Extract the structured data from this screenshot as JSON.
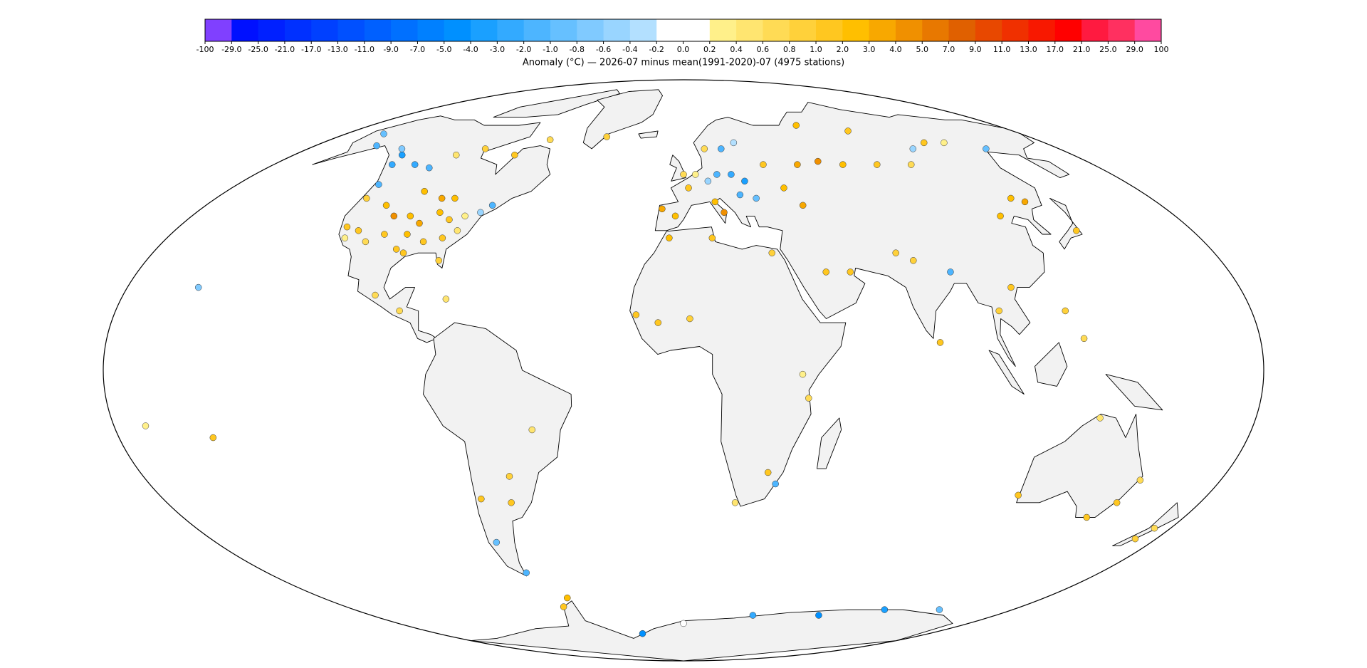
{
  "colorbar": {
    "ticks": [
      -100,
      {
        "value": -29,
        "label": "-29.0"
      },
      {
        "value": -25,
        "label": "-25.0"
      },
      {
        "value": -21,
        "label": "-21.0"
      },
      {
        "value": -17,
        "label": "-17.0"
      },
      {
        "value": -13,
        "label": "-13.0"
      },
      {
        "value": -11,
        "label": "-11.0"
      },
      {
        "value": -9,
        "label": "-9.0"
      },
      {
        "value": -7,
        "label": "-7.0"
      },
      {
        "value": -5,
        "label": "-5.0"
      },
      {
        "value": -4,
        "label": "-4.0"
      },
      {
        "value": -3,
        "label": "-3.0"
      },
      {
        "value": -2,
        "label": "-2.0"
      },
      {
        "value": -1,
        "label": "-1.0"
      },
      -0.8,
      -0.6,
      -0.4,
      -0.2,
      {
        "value": 0,
        "label": "0.0"
      },
      0.2,
      0.4,
      0.6,
      0.8,
      {
        "value": 1,
        "label": "1.0"
      },
      {
        "value": 2,
        "label": "2.0"
      },
      {
        "value": 3,
        "label": "3.0"
      },
      {
        "value": 4,
        "label": "4.0"
      },
      {
        "value": 5,
        "label": "5.0"
      },
      {
        "value": 7,
        "label": "7.0"
      },
      {
        "value": 9,
        "label": "9.0"
      },
      {
        "value": 11,
        "label": "11.0"
      },
      {
        "value": 13,
        "label": "13.0"
      },
      {
        "value": 17,
        "label": "17.0"
      },
      {
        "value": 21,
        "label": "21.0"
      },
      {
        "value": 25,
        "label": "25.0"
      },
      {
        "value": 29,
        "label": "29.0"
      },
      100
    ],
    "colors": [
      "#8040ff",
      "#0010ff",
      "#0020ff",
      "#0030ff",
      "#0040ff",
      "#0050ff",
      "#0060ff",
      "#0070ff",
      "#0080ff",
      "#0090ff",
      "#1aa0ff",
      "#33aaff",
      "#4db5ff",
      "#66c0ff",
      "#80caff",
      "#99d5ff",
      "#b3e0ff",
      "#ffffff",
      "#ffffff",
      "#fff08a",
      "#ffe570",
      "#ffdb55",
      "#ffd13a",
      "#ffc720",
      "#ffbf00",
      "#f8a800",
      "#f09000",
      "#e87800",
      "#e06000",
      "#e84800",
      "#f03000",
      "#f81800",
      "#ff0000",
      "#ff1a40",
      "#ff3060",
      "#ff4aa0"
    ],
    "label": "Anomaly (°C) — 2026-07 minus mean(1991-2020)-07 (4975 stations)"
  },
  "map": {
    "projection": "mollweide",
    "stations": {
      "lon": [
        -100,
        -95,
        -90,
        -85,
        -105,
        -110,
        -120,
        -118,
        -122,
        -112,
        -98,
        -95,
        -84,
        -80,
        -75,
        -72,
        -88,
        -93,
        -102,
        -106,
        -97,
        -82,
        -80,
        -90,
        -115,
        -123,
        -118,
        -110,
        -128,
        -135,
        -130,
        -105,
        -95,
        -78,
        -68,
        -150,
        -160,
        -40,
        -99,
        -90,
        -76,
        -60,
        -58,
        -70,
        -68,
        -72,
        -48,
        -3,
        -8,
        2,
        0,
        5,
        10,
        14,
        20,
        25,
        22,
        18,
        25,
        10,
        12,
        15,
        28,
        35,
        40,
        45,
        -15,
        -8,
        2,
        10,
        -5,
        30,
        18,
        28,
        31,
        37,
        39,
        50,
        60,
        70,
        85,
        100,
        110,
        120,
        130,
        145,
        65,
        90,
        55,
        47,
        72,
        77,
        80,
        88,
        100,
        106,
        116,
        126,
        130,
        139,
        121,
        125,
        174,
        172,
        145,
        151,
        153,
        115,
        131,
        -157,
        -150,
        -170,
        -58,
        -64,
        40,
        78,
        110,
        140,
        -30,
        0
      ],
      "lat": [
        40,
        38,
        41,
        39,
        35,
        33,
        37,
        34,
        45,
        43,
        31,
        30,
        34,
        36,
        41,
        43,
        45,
        45,
        47,
        40,
        35,
        28,
        40,
        33,
        36,
        49,
        55,
        54,
        55,
        60,
        58,
        58,
        60,
        58,
        63,
        61,
        65,
        64,
        19,
        15,
        18,
        -34,
        -27,
        -33,
        -54,
        -45,
        -15,
        40,
        42,
        48,
        52,
        52,
        50,
        52,
        52,
        50,
        46,
        60,
        62,
        60,
        44,
        41,
        45,
        55,
        48,
        43,
        14,
        12,
        13,
        34,
        34,
        30,
        -34,
        -26,
        -29,
        -1,
        -7,
        55,
        56,
        55,
        55,
        55,
        60,
        62,
        62,
        60,
        68,
        66,
        25,
        25,
        30,
        28,
        7,
        25,
        15,
        21,
        40,
        45,
        44,
        36,
        15,
        8,
        -41,
        -44,
        -38,
        -34,
        -28,
        -32,
        -12,
        21,
        -17,
        -14,
        -62,
        -65,
        -68,
        -68,
        -66,
        -66,
        -75,
        -71
      ],
      "values": [
        2.5,
        3.2,
        2.1,
        1.6,
        1.2,
        0.7,
        1.4,
        0.3,
        0.9,
        2.8,
        1.8,
        1.1,
        1.3,
        0.5,
        -0.5,
        -1.2,
        2.4,
        3.5,
        2.2,
        4.5,
        2.9,
        0.9,
        0.3,
        1.5,
        1.0,
        -1.5,
        -2.3,
        -1.1,
        -2.5,
        -0.7,
        -3.5,
        0.5,
        0.9,
        1.2,
        0.7,
        -1.8,
        -0.9,
        0.8,
        0.6,
        0.7,
        0.4,
        1.3,
        0.9,
        1.6,
        -1.3,
        -1.0,
        0.5,
        2.7,
        3.5,
        1.8,
        0.6,
        0.3,
        -0.5,
        -1.5,
        -2.5,
        -3.2,
        -1.8,
        -1.1,
        -0.4,
        0.6,
        2.1,
        4.0,
        -0.9,
        1.3,
        2.2,
        3.1,
        1.2,
        1.5,
        0.8,
        1.9,
        2.5,
        0.9,
        0.4,
        1.1,
        -1.6,
        0.2,
        0.7,
        3.6,
        4.2,
        2.3,
        1.4,
        0.6,
        -0.6,
        1.2,
        0.3,
        -1.0,
        2.0,
        1.0,
        1.3,
        1.0,
        0.8,
        0.9,
        1.8,
        -1.4,
        0.8,
        1.0,
        2.0,
        2.4,
        3.1,
        1.3,
        0.9,
        0.6,
        0.7,
        0.9,
        1.8,
        1.2,
        0.6,
        1.1,
        0.4,
        -0.8,
        1.5,
        0.3,
        2.5,
        1.8,
        -2.2,
        -4.5,
        -3.2,
        -0.9,
        -5.0,
        0.1
      ]
    }
  }
}
